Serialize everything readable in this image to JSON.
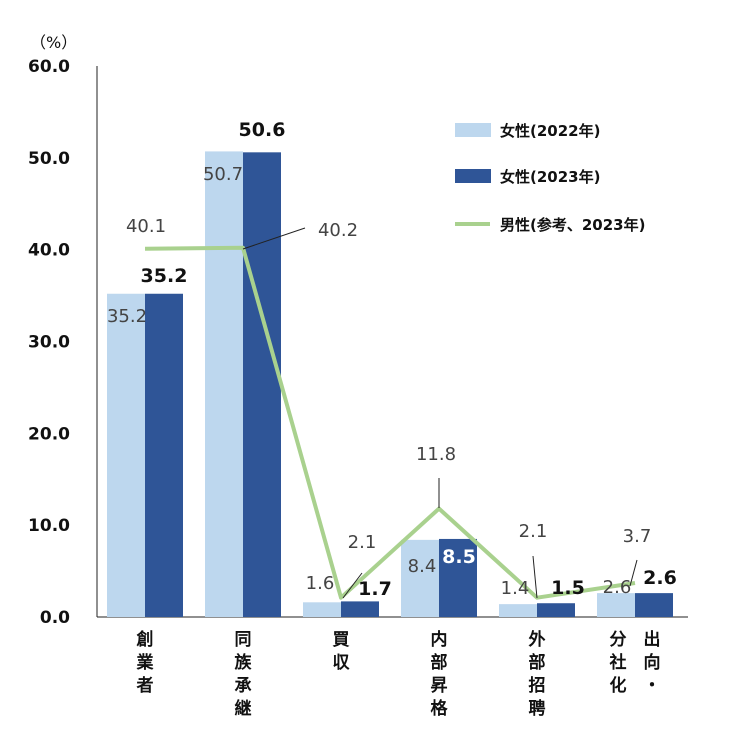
{
  "chart_data": {
    "type": "bar",
    "unit_label": "（%）",
    "ylim": [
      0,
      60
    ],
    "yticks": [
      "0.0",
      "10.0",
      "20.0",
      "30.0",
      "40.0",
      "50.0",
      "60.0"
    ],
    "categories": [
      [
        "創",
        "業",
        "者"
      ],
      [
        "同",
        "族",
        "承",
        "継"
      ],
      [
        "買",
        "収"
      ],
      [
        "内",
        "部",
        "昇",
        "格"
      ],
      [
        "外",
        "部",
        "招",
        "聘"
      ],
      [
        [
          "出",
          "向",
          "・"
        ],
        [
          "分",
          "社",
          "化"
        ]
      ]
    ],
    "series": [
      {
        "name": "女性(2022年)",
        "kind": "bar",
        "color": "#bdd7ee",
        "values": [
          35.2,
          50.7,
          1.6,
          8.4,
          1.4,
          2.6
        ],
        "labels": [
          "35.2",
          "50.7",
          "1.6",
          "8.4",
          "1.4",
          "2.6"
        ]
      },
      {
        "name": "女性(2023年)",
        "kind": "bar",
        "color": "#2f5597",
        "values": [
          35.2,
          50.6,
          1.7,
          8.5,
          1.5,
          2.6
        ],
        "labels": [
          "35.2",
          "50.6",
          "1.7",
          "8.5",
          "1.5",
          "2.6"
        ]
      },
      {
        "name": "男性(参考、2023年)",
        "kind": "line",
        "color": "#a9d18e",
        "values": [
          40.1,
          40.2,
          2.1,
          11.8,
          2.1,
          3.7
        ],
        "labels": [
          "40.1",
          "40.2",
          "2.1",
          "11.8",
          "2.1",
          "3.7"
        ]
      }
    ],
    "legend": "top-right",
    "grid": false
  }
}
